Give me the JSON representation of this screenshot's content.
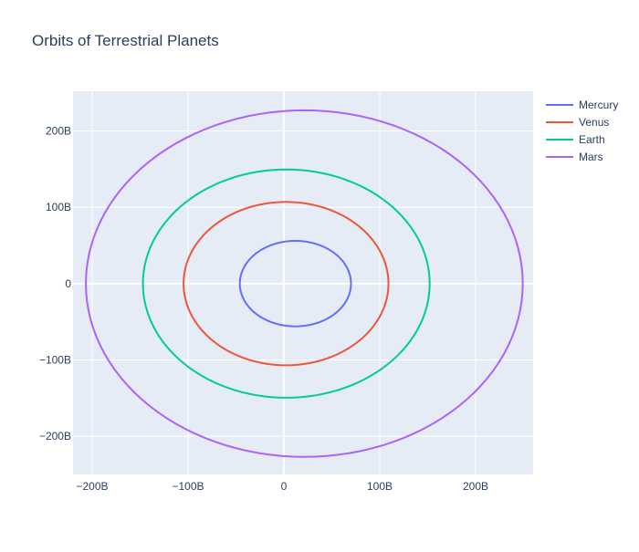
{
  "chart_data": {
    "type": "line",
    "title": "Orbits of Terrestrial Planets",
    "xlabel": "",
    "ylabel": "",
    "xlim": [
      -220,
      260
    ],
    "ylim": [
      -250,
      252
    ],
    "unit": "billion meters",
    "x_ticks": [
      {
        "value": -200,
        "label": "−200B"
      },
      {
        "value": -100,
        "label": "−100B"
      },
      {
        "value": 0,
        "label": "0"
      },
      {
        "value": 100,
        "label": "100B"
      },
      {
        "value": 200,
        "label": "200B"
      }
    ],
    "y_ticks": [
      {
        "value": 200,
        "label": "200B"
      },
      {
        "value": 100,
        "label": "100B"
      },
      {
        "value": 0,
        "label": "0"
      },
      {
        "value": -100,
        "label": "−100B"
      },
      {
        "value": -200,
        "label": "−200B"
      }
    ],
    "grid": true,
    "legend_position": "top-right",
    "series": [
      {
        "name": "Mercury",
        "color": "#636efa",
        "x_min": -46,
        "x_max": 70,
        "y_extent": 56
      },
      {
        "name": "Venus",
        "color": "#ef553b",
        "x_min": -104.7,
        "x_max": 109.1,
        "y_extent": 107
      },
      {
        "name": "Earth",
        "color": "#00cc96",
        "x_min": -147.1,
        "x_max": 152.1,
        "y_extent": 149.5
      },
      {
        "name": "Mars",
        "color": "#ab63fa",
        "x_min": -206.6,
        "x_max": 249.2,
        "y_extent": 227
      }
    ]
  }
}
